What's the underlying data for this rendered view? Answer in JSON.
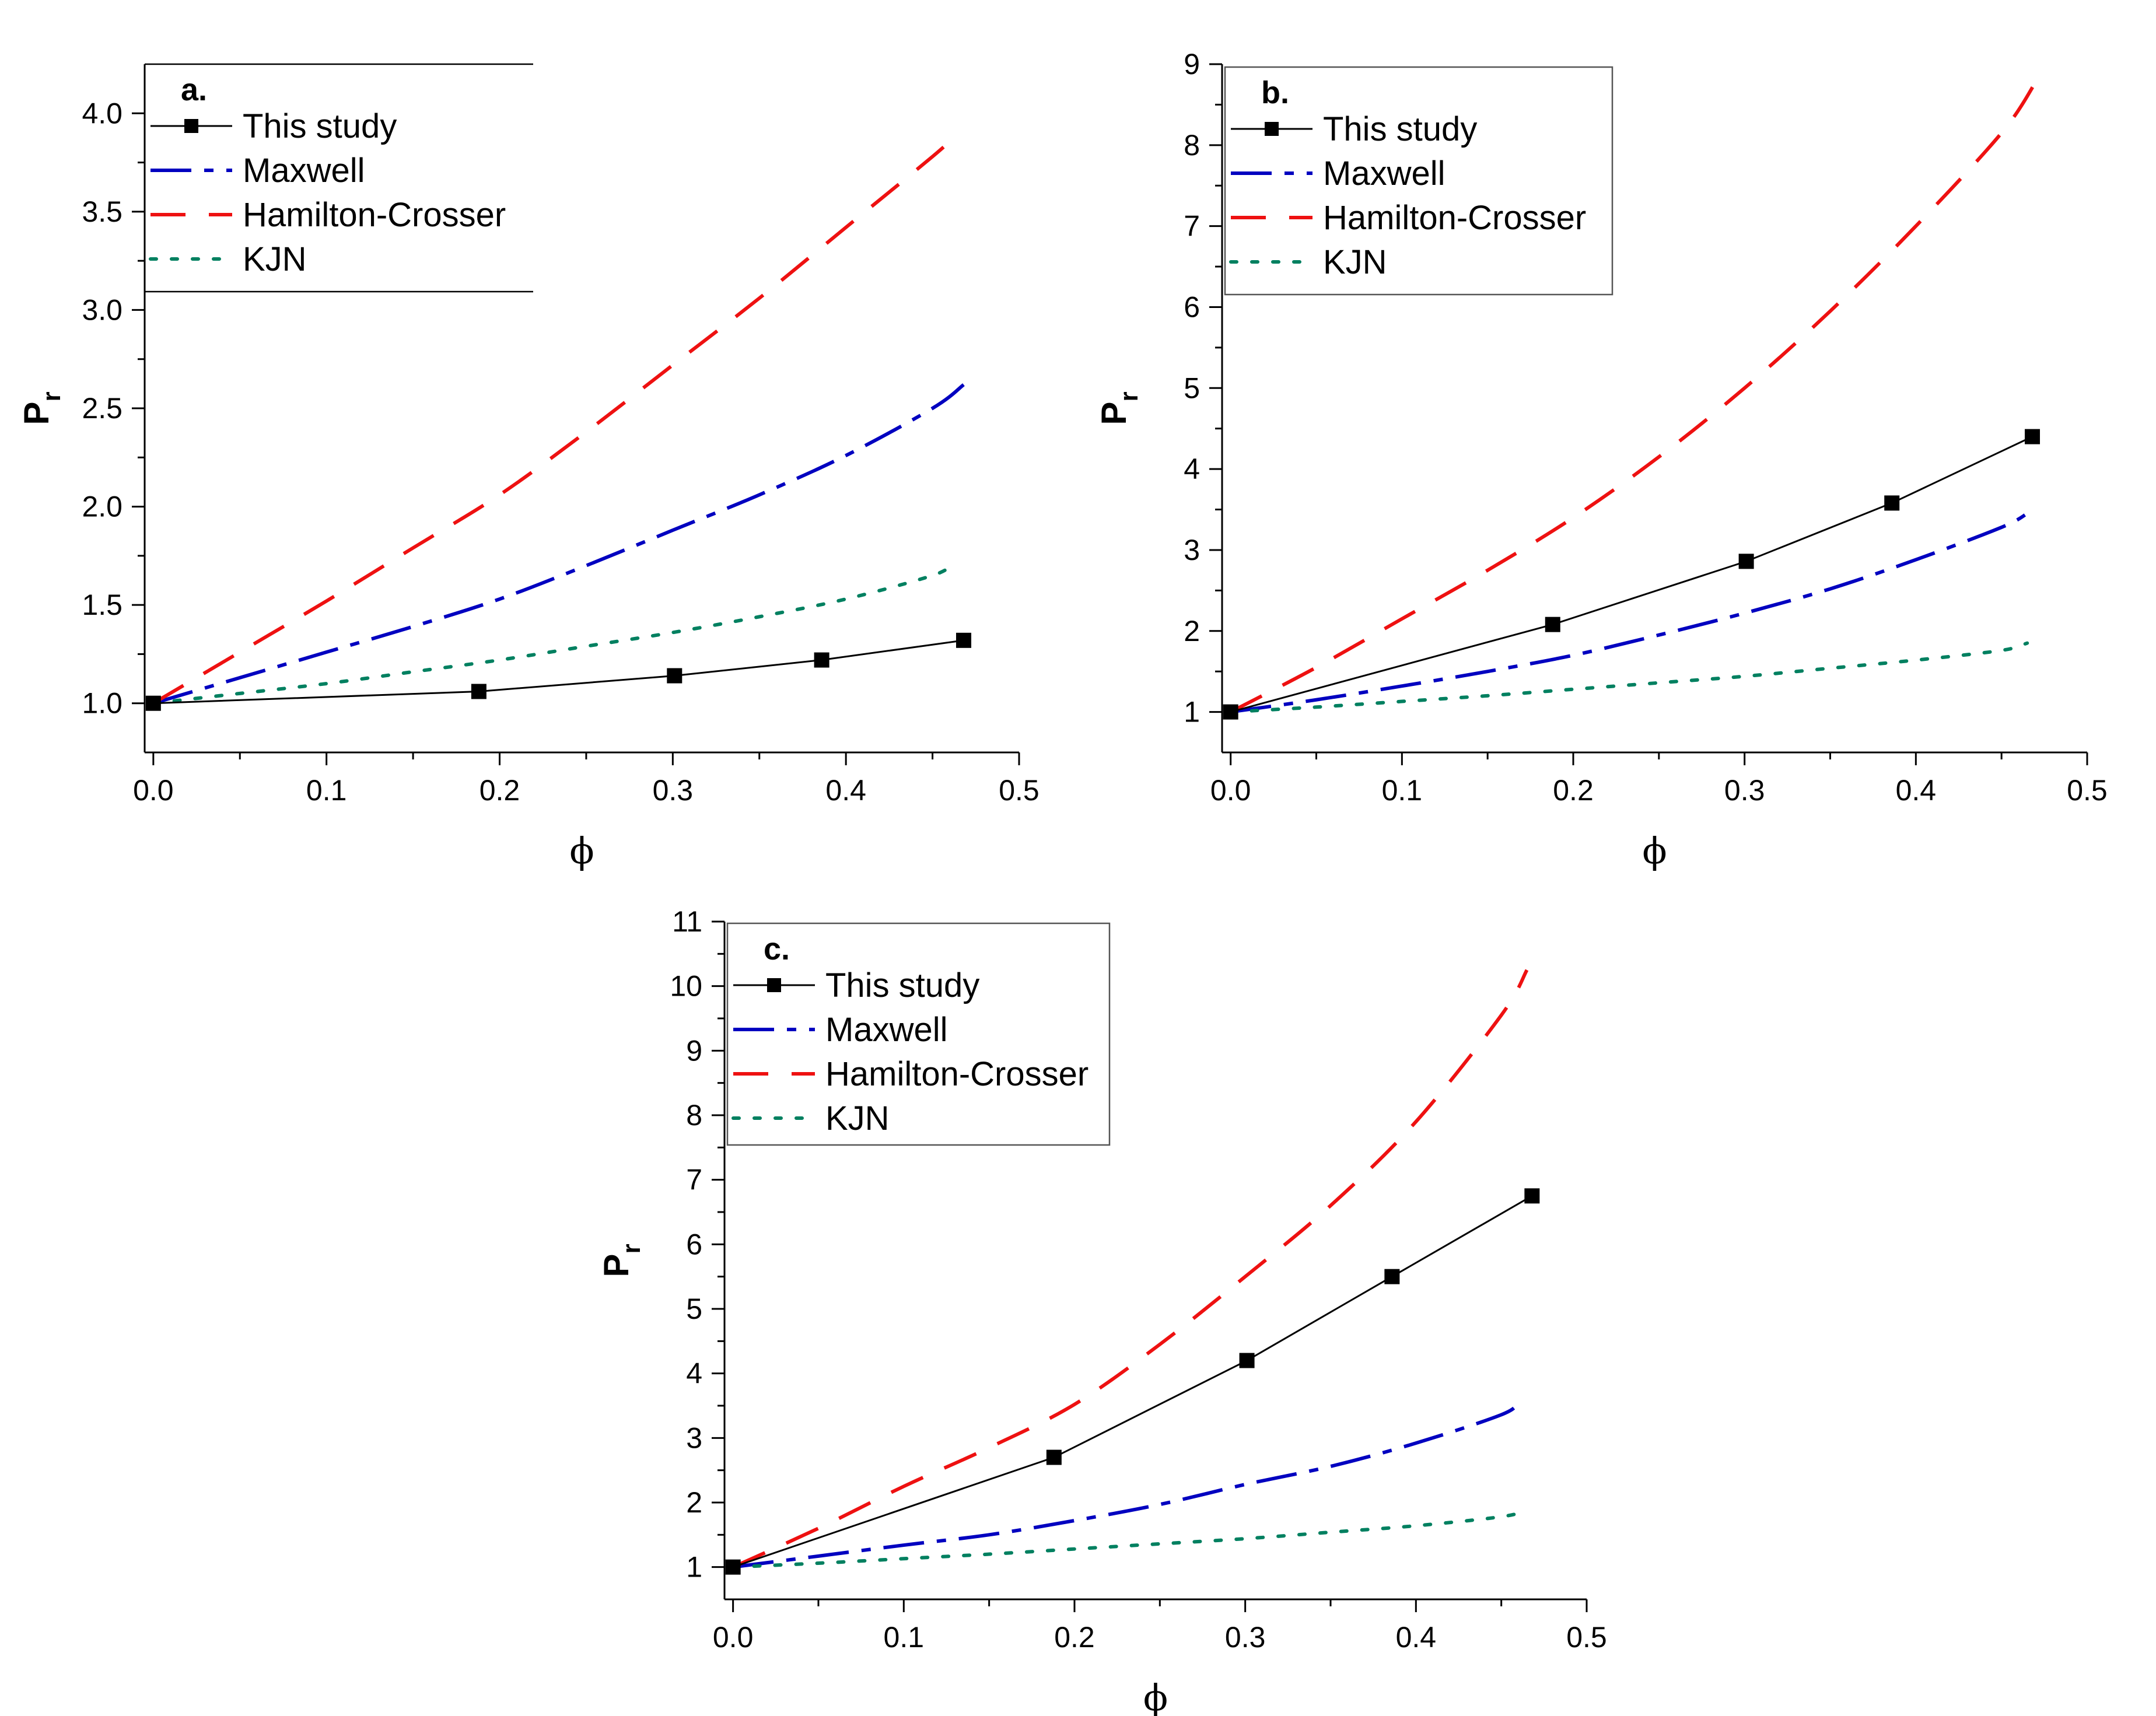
{
  "series_styles": {
    "this_study": {
      "color": "#000000",
      "dash": "",
      "marker": "square"
    },
    "maxwell": {
      "color": "#0000C0",
      "dash": "70 22 16 22",
      "marker": "none"
    },
    "hamilton_crosser": {
      "color": "#EE1111",
      "dash": "60 40",
      "marker": "none"
    },
    "kjn": {
      "color": "#008060",
      "dash": "10 26",
      "marker": "none"
    }
  },
  "chart_data": [
    {
      "type": "line",
      "panel_label": "a.",
      "title": "",
      "xlabel": "ϕ",
      "ylabel": "P",
      "ylabel_subscript": "r",
      "xlim": [
        -0.005,
        0.5
      ],
      "ylim": [
        0.75,
        4.25
      ],
      "xticks": [
        0.0,
        0.1,
        0.2,
        0.3,
        0.4,
        0.5
      ],
      "xtick_labels": [
        "0.0",
        "0.1",
        "0.2",
        "0.3",
        "0.4",
        "0.5"
      ],
      "yticks": [
        1.0,
        1.5,
        2.0,
        2.5,
        3.0,
        3.5,
        4.0
      ],
      "ytick_labels": [
        "1.0",
        "1.5",
        "2.0",
        "2.5",
        "3.0",
        "3.5",
        "4.0"
      ],
      "legend_position": "top-left",
      "series": [
        {
          "name": "This study",
          "style": "this_study",
          "x": [
            0.0,
            0.188,
            0.301,
            0.386,
            0.468
          ],
          "y": [
            1.0,
            1.06,
            1.14,
            1.22,
            1.32
          ]
        },
        {
          "name": "Maxwell",
          "style": "maxwell",
          "x": [
            0.0,
            0.05,
            0.1,
            0.15,
            0.2,
            0.25,
            0.3,
            0.35,
            0.4,
            0.45,
            0.468
          ],
          "y": [
            1.0,
            1.13,
            1.26,
            1.39,
            1.53,
            1.7,
            1.88,
            2.06,
            2.26,
            2.5,
            2.62
          ]
        },
        {
          "name": "Hamilton-Crosser",
          "style": "hamilton_crosser",
          "x": [
            0.0,
            0.05,
            0.1,
            0.15,
            0.2,
            0.25,
            0.3,
            0.35,
            0.4,
            0.45,
            0.465
          ],
          "y": [
            1.0,
            1.26,
            1.52,
            1.79,
            2.06,
            2.38,
            2.72,
            3.06,
            3.42,
            3.78,
            3.9
          ]
        },
        {
          "name": "KJN",
          "style": "kjn",
          "x": [
            0.0,
            0.05,
            0.1,
            0.15,
            0.2,
            0.25,
            0.3,
            0.35,
            0.4,
            0.45,
            0.462
          ],
          "y": [
            1.0,
            1.05,
            1.1,
            1.16,
            1.22,
            1.29,
            1.36,
            1.44,
            1.53,
            1.65,
            1.71
          ]
        }
      ]
    },
    {
      "type": "line",
      "panel_label": "b.",
      "title": "",
      "xlabel": "ϕ",
      "ylabel": "P",
      "ylabel_subscript": "r",
      "xlim": [
        -0.005,
        0.5
      ],
      "ylim": [
        0.5,
        9.0
      ],
      "xticks": [
        0.0,
        0.1,
        0.2,
        0.3,
        0.4,
        0.5
      ],
      "xtick_labels": [
        "0.0",
        "0.1",
        "0.2",
        "0.3",
        "0.4",
        "0.5"
      ],
      "yticks": [
        1,
        2,
        3,
        4,
        5,
        6,
        7,
        8,
        9
      ],
      "ytick_labels": [
        "1",
        "2",
        "3",
        "4",
        "5",
        "6",
        "7",
        "8",
        "9"
      ],
      "legend_position": "top-left",
      "series": [
        {
          "name": "This study",
          "style": "this_study",
          "x": [
            0.0,
            0.188,
            0.301,
            0.386,
            0.468
          ],
          "y": [
            1.0,
            2.08,
            2.86,
            3.58,
            4.4
          ]
        },
        {
          "name": "Maxwell",
          "style": "maxwell",
          "x": [
            0.0,
            0.05,
            0.1,
            0.15,
            0.2,
            0.25,
            0.3,
            0.35,
            0.4,
            0.45,
            0.465
          ],
          "y": [
            1.0,
            1.15,
            1.32,
            1.5,
            1.7,
            1.95,
            2.22,
            2.52,
            2.88,
            3.28,
            3.45
          ]
        },
        {
          "name": "Hamilton-Crosser",
          "style": "hamilton_crosser",
          "x": [
            0.0,
            0.05,
            0.1,
            0.15,
            0.2,
            0.25,
            0.3,
            0.35,
            0.4,
            0.45,
            0.47
          ],
          "y": [
            1.0,
            1.55,
            2.15,
            2.75,
            3.4,
            4.15,
            5.0,
            5.95,
            7.0,
            8.15,
            8.78
          ]
        },
        {
          "name": "KJN",
          "style": "kjn",
          "x": [
            0.0,
            0.05,
            0.1,
            0.15,
            0.2,
            0.25,
            0.3,
            0.35,
            0.4,
            0.45,
            0.465
          ],
          "y": [
            1.0,
            1.06,
            1.13,
            1.2,
            1.28,
            1.36,
            1.44,
            1.54,
            1.64,
            1.76,
            1.85
          ]
        }
      ]
    },
    {
      "type": "line",
      "panel_label": "c.",
      "title": "",
      "xlabel": "ϕ",
      "ylabel": "P",
      "ylabel_subscript": "r",
      "xlim": [
        -0.005,
        0.5
      ],
      "ylim": [
        0.5,
        11.0
      ],
      "xticks": [
        0.0,
        0.1,
        0.2,
        0.3,
        0.4,
        0.5
      ],
      "xtick_labels": [
        "0.0",
        "0.1",
        "0.2",
        "0.3",
        "0.4",
        "0.5"
      ],
      "yticks": [
        1,
        2,
        3,
        4,
        5,
        6,
        7,
        8,
        9,
        10,
        11
      ],
      "ytick_labels": [
        "1",
        "2",
        "3",
        "4",
        "5",
        "6",
        "7",
        "8",
        "9",
        "10",
        "11"
      ],
      "legend_position": "top-left",
      "series": [
        {
          "name": "This study",
          "style": "this_study",
          "x": [
            0.0,
            0.188,
            0.301,
            0.386,
            0.468
          ],
          "y": [
            1.0,
            2.7,
            4.2,
            5.5,
            6.75
          ]
        },
        {
          "name": "Maxwell",
          "style": "maxwell",
          "x": [
            0.0,
            0.05,
            0.1,
            0.15,
            0.2,
            0.25,
            0.3,
            0.35,
            0.4,
            0.45,
            0.46
          ],
          "y": [
            1.0,
            1.17,
            1.34,
            1.5,
            1.72,
            1.97,
            2.28,
            2.56,
            2.92,
            3.36,
            3.55
          ]
        },
        {
          "name": "Hamilton-Crosser",
          "style": "hamilton_crosser",
          "x": [
            0.0,
            0.05,
            0.1,
            0.15,
            0.2,
            0.25,
            0.3,
            0.35,
            0.4,
            0.45,
            0.465
          ],
          "y": [
            1.0,
            1.6,
            2.25,
            2.85,
            3.52,
            4.45,
            5.5,
            6.6,
            7.9,
            9.55,
            10.25
          ]
        },
        {
          "name": "KJN",
          "style": "kjn",
          "x": [
            0.0,
            0.05,
            0.1,
            0.15,
            0.2,
            0.25,
            0.3,
            0.35,
            0.4,
            0.45,
            0.465
          ],
          "y": [
            1.0,
            1.06,
            1.13,
            1.2,
            1.28,
            1.36,
            1.44,
            1.54,
            1.64,
            1.78,
            1.88
          ]
        }
      ]
    }
  ]
}
